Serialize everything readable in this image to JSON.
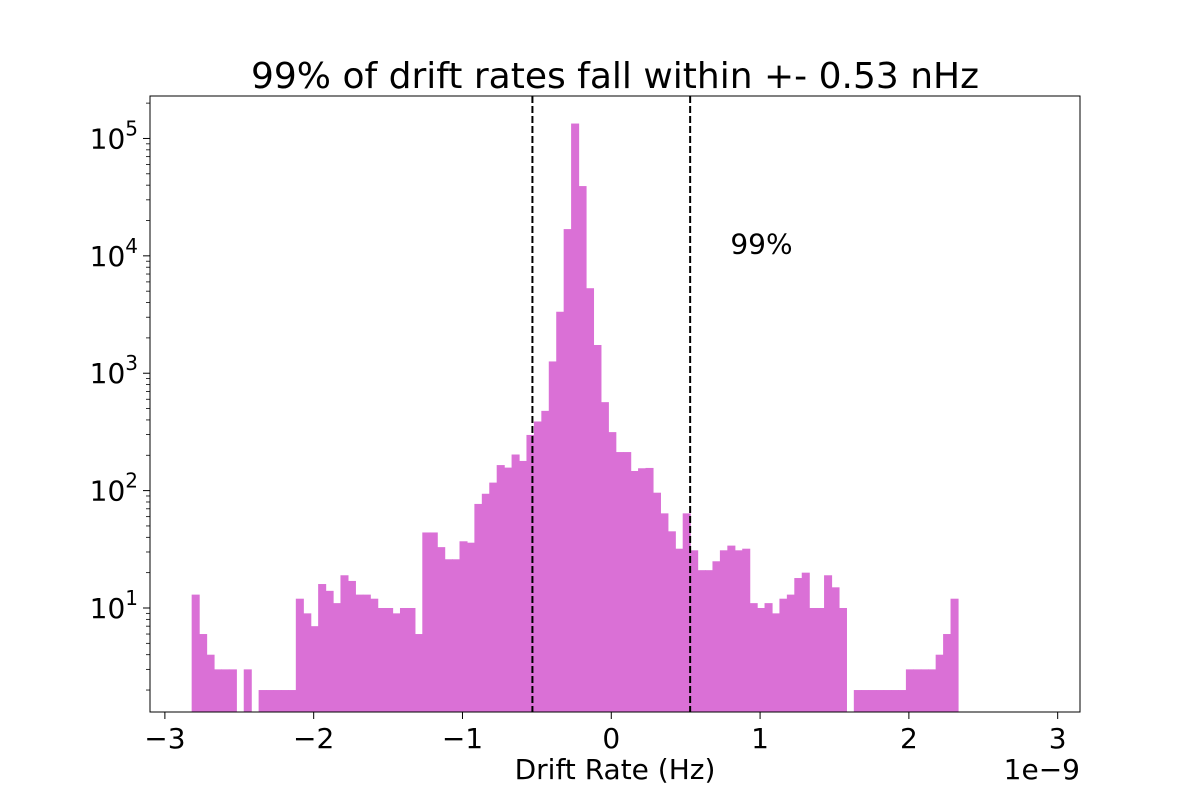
{
  "chart_data": {
    "type": "bar",
    "title": "99% of drift rates fall within +- 0.53 nHz",
    "xlabel": "Drift Rate (Hz)",
    "ylabel": "",
    "x_offset_label": "1e−9",
    "x_scale": "linear",
    "y_scale": "log",
    "xlim": [
      -3.1,
      3.15
    ],
    "ylim": [
      1.3,
      230000
    ],
    "x_ticks": [
      -3,
      -2,
      -1,
      0,
      1,
      2,
      3
    ],
    "x_tick_labels": [
      "−3",
      "−2",
      "−1",
      "0",
      "1",
      "2",
      "3"
    ],
    "y_ticks": [
      10,
      100,
      1000,
      10000,
      100000
    ],
    "y_tick_labels": [
      {
        "base": "10",
        "exp": "1"
      },
      {
        "base": "10",
        "exp": "2"
      },
      {
        "base": "10",
        "exp": "3"
      },
      {
        "base": "10",
        "exp": "4"
      },
      {
        "base": "10",
        "exp": "5"
      }
    ],
    "bar_color": "#da70d6",
    "bin_edges_start": -2.82,
    "bin_width": 0.05,
    "counts": [
      13,
      6,
      4,
      3,
      3,
      3,
      1,
      3,
      1,
      2,
      2,
      2,
      2,
      2,
      12,
      9,
      7,
      16,
      14,
      11,
      19,
      17,
      13,
      13,
      12,
      10,
      10,
      9,
      10,
      10,
      6,
      44,
      44,
      33,
      26,
      26,
      37,
      36,
      77,
      94,
      117,
      165,
      157,
      203,
      179,
      298,
      388,
      478,
      1260,
      3340,
      16900,
      134000,
      39300,
      5300,
      1740,
      567,
      315,
      213,
      213,
      147,
      155,
      156,
      96,
      64,
      45,
      32,
      64,
      31,
      21,
      21,
      25,
      31,
      34,
      31,
      32,
      11,
      10,
      11,
      9,
      12,
      13,
      18,
      20,
      10,
      10,
      19,
      15,
      10,
      1,
      2,
      2,
      2,
      2,
      2,
      2,
      2,
      3,
      3,
      3,
      3,
      4,
      6,
      12
    ],
    "vlines": [
      -0.53,
      0.53
    ],
    "vline_style": "dashed",
    "annotation": {
      "text": "99%",
      "x": 0.8,
      "y": 10500
    },
    "grid": false
  }
}
